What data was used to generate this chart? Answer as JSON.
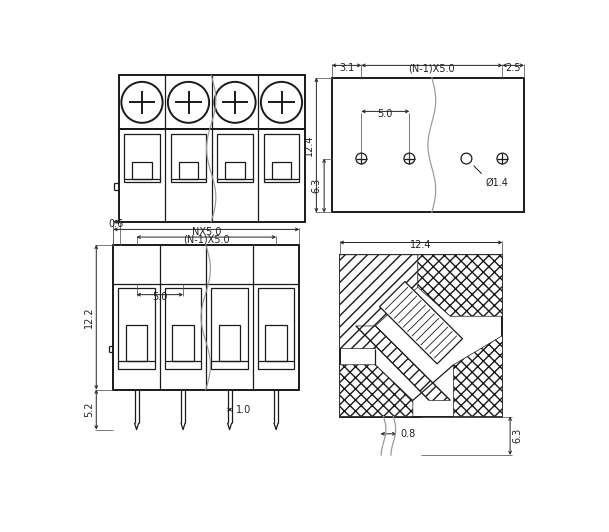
{
  "bg_color": "#ffffff",
  "lc": "#1a1a1a",
  "gc": "#999999",
  "dc": "#222222",
  "ec": "#555555",
  "fig_w": 6.09,
  "fig_h": 5.32,
  "dpi": 100,
  "labels": {
    "dim_31": "3.1",
    "dim_n1x50": "(N-1)X5.0",
    "dim_25": "2.5",
    "dim_50": "5.0",
    "dim_124": "12.4",
    "dim_63_tr": "6.3",
    "dim_d14": "Ø1.4",
    "dim_06": "0.6",
    "dim_nx50": "NX5.0",
    "dim_n1x50_bl": "(N-1)X5.0",
    "dim_50_bl": "5.0",
    "dim_122": "12.2",
    "dim_52": "5.2",
    "dim_10": "1.0",
    "dim_124_br": "12.4",
    "dim_08": "0.8",
    "dim_63_br": "6.3"
  }
}
